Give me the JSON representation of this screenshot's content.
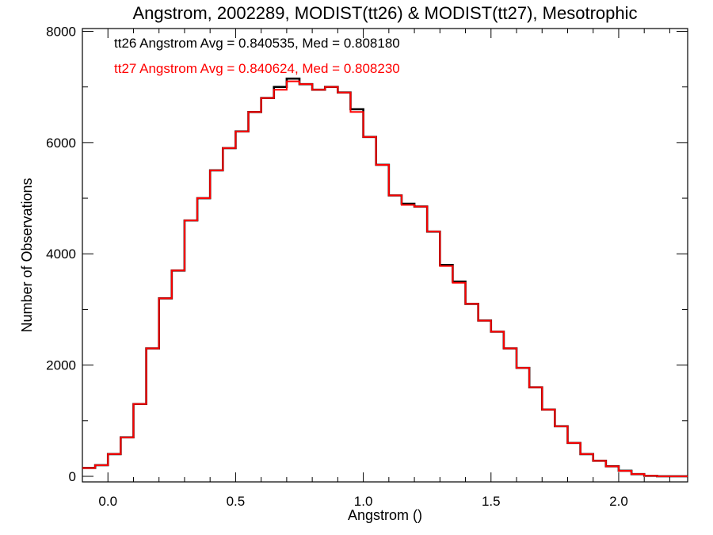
{
  "chart_data": {
    "type": "line",
    "title": "Angstrom, 2002289, MODIST(tt26) & MODIST(tt27), Mesotrophic",
    "xlabel": "Angstrom ()",
    "ylabel": "Number of Observations",
    "xlim": [
      -0.1,
      2.27
    ],
    "ylim": [
      -100,
      8050
    ],
    "x_ticks": [
      0.0,
      0.5,
      1.0,
      1.5,
      2.0
    ],
    "x_tick_labels": [
      "0.0",
      "0.5",
      "1.0",
      "1.5",
      "2.0"
    ],
    "y_ticks": [
      0,
      2000,
      4000,
      6000,
      8000
    ],
    "y_tick_labels": [
      "0",
      "2000",
      "4000",
      "6000",
      "8000"
    ],
    "legend_position": "top-left",
    "step": "histogram",
    "series": [
      {
        "name": "tt26",
        "color": "#000000",
        "annotation": "tt26 Angstrom Avg = 0.840535, Med = 0.808180",
        "x": [
          -0.1,
          -0.05,
          0.0,
          0.05,
          0.1,
          0.15,
          0.2,
          0.25,
          0.3,
          0.35,
          0.4,
          0.45,
          0.5,
          0.55,
          0.6,
          0.65,
          0.7,
          0.75,
          0.8,
          0.85,
          0.9,
          0.95,
          1.0,
          1.05,
          1.1,
          1.15,
          1.2,
          1.25,
          1.3,
          1.35,
          1.4,
          1.45,
          1.5,
          1.55,
          1.6,
          1.65,
          1.7,
          1.75,
          1.8,
          1.85,
          1.9,
          1.95,
          2.0,
          2.05,
          2.1,
          2.15,
          2.2,
          2.27
        ],
        "y": [
          150,
          200,
          400,
          700,
          1300,
          2300,
          3200,
          3700,
          4600,
          5000,
          5500,
          5900,
          6200,
          6550,
          6800,
          7000,
          7150,
          7050,
          6950,
          7000,
          6900,
          6600,
          6100,
          5600,
          5050,
          4900,
          4850,
          4400,
          3800,
          3500,
          3100,
          2800,
          2600,
          2300,
          1950,
          1600,
          1200,
          900,
          600,
          400,
          280,
          180,
          100,
          40,
          10,
          0,
          0,
          0
        ]
      },
      {
        "name": "tt27",
        "color": "#ff0000",
        "annotation": "tt27 Angstrom Avg = 0.840624, Med = 0.808230",
        "x": [
          -0.1,
          -0.05,
          0.0,
          0.05,
          0.1,
          0.15,
          0.2,
          0.25,
          0.3,
          0.35,
          0.4,
          0.45,
          0.5,
          0.55,
          0.6,
          0.65,
          0.7,
          0.75,
          0.8,
          0.85,
          0.9,
          0.95,
          1.0,
          1.05,
          1.1,
          1.15,
          1.2,
          1.25,
          1.3,
          1.35,
          1.4,
          1.45,
          1.5,
          1.55,
          1.6,
          1.65,
          1.7,
          1.75,
          1.8,
          1.85,
          1.9,
          1.95,
          2.0,
          2.05,
          2.1,
          2.15,
          2.2,
          2.27
        ],
        "y": [
          150,
          200,
          400,
          700,
          1300,
          2300,
          3200,
          3700,
          4600,
          5000,
          5500,
          5900,
          6200,
          6550,
          6800,
          6950,
          7100,
          7050,
          6950,
          7000,
          6900,
          6550,
          6100,
          5600,
          5050,
          4880,
          4850,
          4400,
          3780,
          3480,
          3100,
          2800,
          2600,
          2300,
          1950,
          1600,
          1200,
          900,
          600,
          400,
          280,
          180,
          100,
          40,
          10,
          0,
          0,
          0
        ]
      }
    ]
  }
}
